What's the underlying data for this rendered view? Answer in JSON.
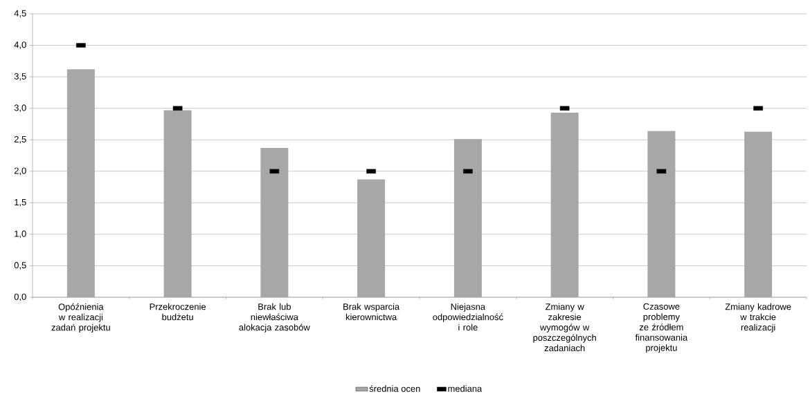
{
  "chart_data": {
    "type": "bar",
    "categories": [
      "Opóźnienia w realizacji zadań projektu",
      "Przekroczenie budżetu",
      "Brak lub niewłaściwa alokacja zasobów",
      "Brak wsparcia kierownictwa",
      "Niejasna odpowiedzialność i role",
      "Zmiany w zakresie wymogów w poszczególnych zadaniach",
      "Czasowe problemy ze źródłem finansowania projektu",
      "Zmiany kadrowe w trakcie realizacji"
    ],
    "series": [
      {
        "name": "średnia ocen",
        "color": "#a6a7a9",
        "values": [
          3.62,
          2.97,
          2.37,
          1.87,
          2.51,
          2.93,
          2.64,
          2.63
        ]
      },
      {
        "name": "mediana",
        "type": "scatter",
        "marker": "square",
        "color": "#000000",
        "x": [
          "Opóźnienia w realizacji zadań projektu",
          "Przekroczenie budżetu",
          "Brak lub niewłaściwa alokacja zasobów",
          "Brak wsparcia kierownictwa",
          "Niejasna odpowiedzialność i role",
          "Zmiany w zakresie wymogów w poszczególnych zadaniach",
          "Czasowe problemy ze źródłem finansowania projektu",
          "Zmiany kadrowe w trakcie realizacji"
        ],
        "values": [
          4,
          3,
          2,
          2,
          2,
          3,
          2,
          3
        ]
      }
    ],
    "ylim": [
      0,
      4.5
    ],
    "yticks": [
      {
        "value": 0,
        "label": "0,0"
      },
      {
        "value": 0.5,
        "label": "0,5"
      },
      {
        "value": 1,
        "label": "1,0"
      },
      {
        "value": 1.5,
        "label": "1,5"
      },
      {
        "value": 2,
        "label": "2,0"
      },
      {
        "value": 2.5,
        "label": "2,5"
      },
      {
        "value": 3,
        "label": "3,0"
      },
      {
        "value": 3.5,
        "label": "3,5"
      },
      {
        "value": 4,
        "label": "4,0"
      },
      {
        "value": 4.5,
        "label": "4,5"
      }
    ],
    "grid": "y",
    "legend": "bottom"
  }
}
